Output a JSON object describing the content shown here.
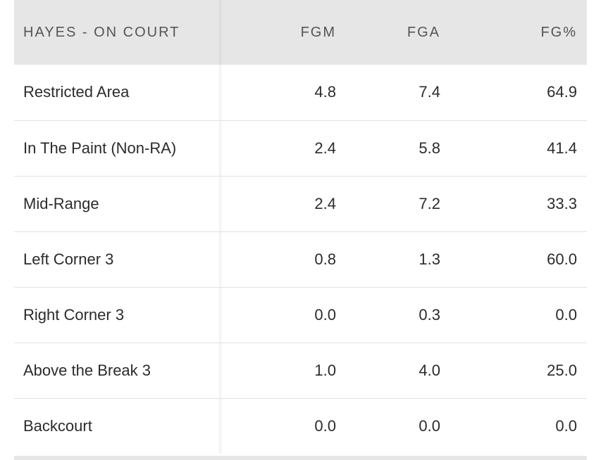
{
  "table": {
    "headers": {
      "name": "HAYES - ON COURT",
      "fgm": "FGM",
      "fga": "FGA",
      "fg_pct": "FG%"
    },
    "rows": [
      {
        "zone": "Restricted Area",
        "fgm": "4.8",
        "fga": "7.4",
        "fg_pct": "64.9"
      },
      {
        "zone": "In The Paint (Non-RA)",
        "fgm": "2.4",
        "fga": "5.8",
        "fg_pct": "41.4"
      },
      {
        "zone": "Mid-Range",
        "fgm": "2.4",
        "fga": "7.2",
        "fg_pct": "33.3"
      },
      {
        "zone": "Left Corner 3",
        "fgm": "0.8",
        "fga": "1.3",
        "fg_pct": "60.0"
      },
      {
        "zone": "Right Corner 3",
        "fgm": "0.0",
        "fga": "0.3",
        "fg_pct": "0.0"
      },
      {
        "zone": "Above the Break 3",
        "fgm": "1.0",
        "fga": "4.0",
        "fg_pct": "25.0"
      },
      {
        "zone": "Backcourt",
        "fgm": "0.0",
        "fga": "0.0",
        "fg_pct": "0.0"
      }
    ]
  },
  "colors": {
    "header_bg": "#e6e6e6",
    "header_text": "#555555",
    "body_text": "#2b2b2b",
    "row_divider": "#e2e2e2"
  }
}
